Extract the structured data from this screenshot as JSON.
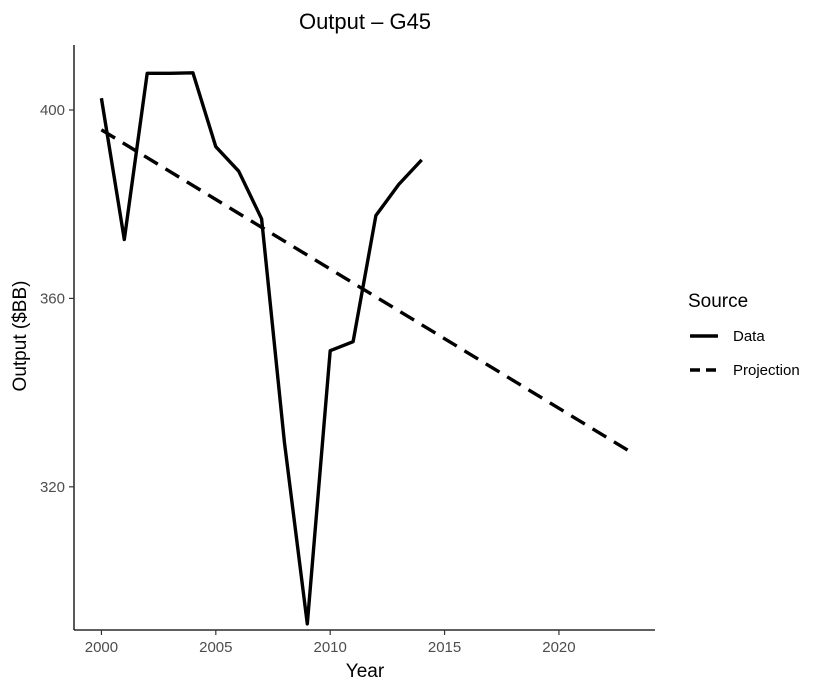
{
  "chart_data": {
    "type": "line",
    "title": "Output – G45",
    "xlabel": "Year",
    "ylabel": "Output ($BB)",
    "xlim": [
      1998.8,
      2024.2
    ],
    "ylim": [
      289.6,
      413.8
    ],
    "x_ticks": [
      2000,
      2005,
      2010,
      2015,
      2020
    ],
    "y_ticks": [
      320,
      360,
      400
    ],
    "grid": false,
    "legend": {
      "title": "Source",
      "position": "right",
      "entries": [
        "Data",
        "Projection"
      ]
    },
    "series": [
      {
        "name": "Data",
        "style": "solid",
        "color": "#000000",
        "x": [
          2000,
          2001,
          2002,
          2003,
          2004,
          2005,
          2006,
          2007,
          2008,
          2009,
          2010,
          2011,
          2012,
          2013,
          2014
        ],
        "y": [
          402.5,
          372.5,
          407.8,
          407.8,
          407.9,
          392.2,
          387.0,
          376.9,
          329.5,
          290.9,
          348.9,
          350.8,
          377.6,
          384.2,
          389.4
        ]
      },
      {
        "name": "Projection",
        "style": "dashed",
        "color": "#000000",
        "x": [
          2000,
          2023
        ],
        "y": [
          395.8,
          327.8
        ]
      }
    ]
  }
}
